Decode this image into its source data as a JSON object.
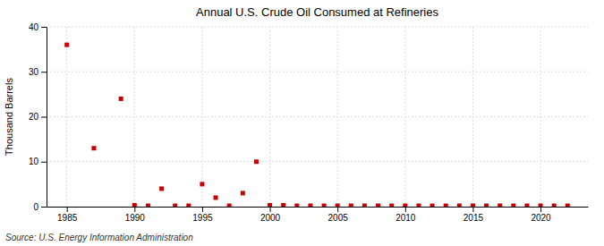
{
  "chart_data": {
    "type": "scatter",
    "title": "Annual U.S. Crude Oil Consumed at Refineries",
    "ylabel": "Thousand Barrels",
    "annotations": [
      "Source: U.S. Energy Information Administration"
    ],
    "x": [
      1985,
      1987,
      1989,
      1990,
      1991,
      1992,
      1993,
      1994,
      1995,
      1996,
      1997,
      1998,
      1999,
      2000,
      2001,
      2002,
      2003,
      2004,
      2005,
      2006,
      2007,
      2008,
      2009,
      2010,
      2011,
      2012,
      2013,
      2014,
      2015,
      2016,
      2017,
      2018,
      2019,
      2020,
      2021,
      2022
    ],
    "values": [
      36,
      13,
      24,
      0.3,
      0.2,
      4,
      0.2,
      0.2,
      5,
      2,
      0.2,
      3,
      10,
      0.3,
      0.3,
      0.2,
      0.2,
      0.2,
      0.2,
      0.2,
      0.2,
      0.2,
      0.2,
      0.2,
      0.2,
      0.2,
      0.2,
      0.2,
      0.2,
      0.2,
      0.2,
      0.2,
      0.2,
      0.2,
      0.2,
      0.2
    ],
    "color": "#cc0000",
    "marker": "square",
    "xlim": [
      1983.5,
      2023.5
    ],
    "ylim": [
      0,
      40
    ],
    "xticks": [
      1985,
      1990,
      1995,
      2000,
      2005,
      2010,
      2015,
      2020
    ],
    "yticks": [
      0,
      10,
      20,
      30,
      40
    ],
    "grid": true
  }
}
